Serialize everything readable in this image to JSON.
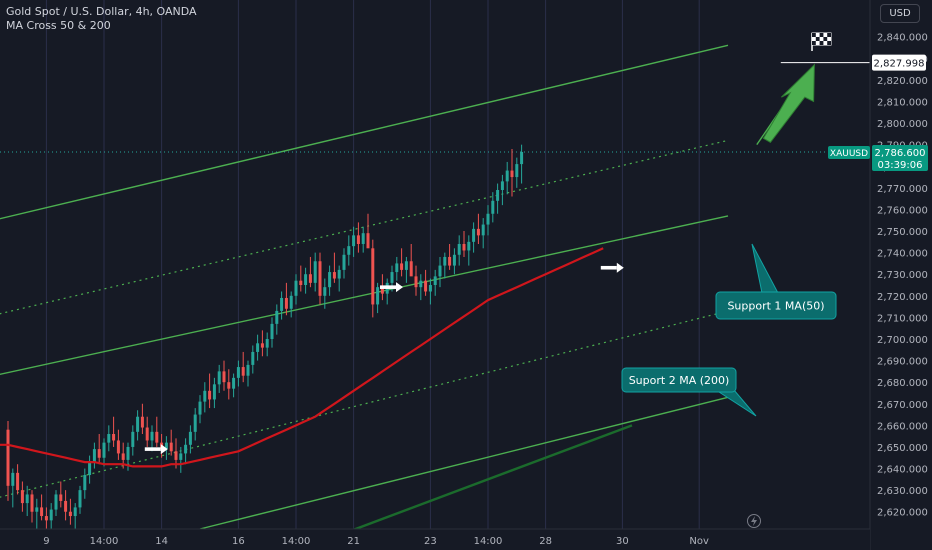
{
  "header": {
    "title": "Gold Spot / U.S. Dollar, 4h, OANDA",
    "indicator": "MA Cross 50 & 200"
  },
  "currency_button": "USD",
  "price_tags": {
    "target": "2,827.998",
    "symbol": "XAUUSD",
    "last": "2,786.600",
    "countdown": "03:39:06"
  },
  "annotations": {
    "support1": "Support 1 MA(50)",
    "support2": "Suport 2 MA (200)"
  },
  "colors": {
    "background": "#161a25",
    "up": "#26a69a",
    "down": "#ef5350",
    "channel": "#4caf50",
    "ma50": "#d0161c",
    "ma200": "#1b6b2c",
    "label_bg": "#0b6d6d"
  },
  "chart_data": {
    "type": "candlestick",
    "y_axis": {
      "min": 2612,
      "max": 2857,
      "ticks": [
        2620,
        2630,
        2640,
        2650,
        2660,
        2670,
        2680,
        2690,
        2700,
        2710,
        2720,
        2730,
        2740,
        2750,
        2760,
        2770,
        2780,
        2790,
        2800,
        2810,
        2820,
        2830,
        2840
      ],
      "tick_labels": [
        "2,620.000",
        "2,630.000",
        "2,640.000",
        "2,650.000",
        "2,660.000",
        "2,670.000",
        "2,680.000",
        "2,690.000",
        "2,700.000",
        "2,710.000",
        "2,720.000",
        "2,730.000",
        "2,740.000",
        "2,750.000",
        "2,760.000",
        "2,770.000",
        "2,780.000",
        "2,790.000",
        "2,800.000",
        "2,810.000",
        "2,820.000",
        "2,830.000",
        "2,840.000"
      ]
    },
    "x_axis": {
      "labels": [
        {
          "text": "9",
          "bar": 8
        },
        {
          "text": "14:00",
          "bar": 20
        },
        {
          "text": "14",
          "bar": 32
        },
        {
          "text": "16",
          "bar": 48
        },
        {
          "text": "14:00",
          "bar": 60
        },
        {
          "text": "21",
          "bar": 72
        },
        {
          "text": "23",
          "bar": 88
        },
        {
          "text": "14:00",
          "bar": 100
        },
        {
          "text": "28",
          "bar": 112
        },
        {
          "text": "30",
          "bar": 128
        },
        {
          "text": "Nov",
          "bar": 144
        }
      ]
    },
    "candles": [
      [
        2658,
        2662,
        2625,
        2632
      ],
      [
        2632,
        2640,
        2622,
        2638
      ],
      [
        2638,
        2642,
        2628,
        2630
      ],
      [
        2630,
        2634,
        2620,
        2624
      ],
      [
        2624,
        2632,
        2618,
        2628
      ],
      [
        2628,
        2630,
        2615,
        2620
      ],
      [
        2620,
        2626,
        2612,
        2622
      ],
      [
        2622,
        2628,
        2616,
        2618
      ],
      [
        2618,
        2622,
        2612,
        2616
      ],
      [
        2616,
        2624,
        2612,
        2621
      ],
      [
        2621,
        2630,
        2618,
        2628
      ],
      [
        2628,
        2634,
        2622,
        2625
      ],
      [
        2625,
        2630,
        2616,
        2620
      ],
      [
        2620,
        2626,
        2614,
        2618
      ],
      [
        2618,
        2624,
        2612,
        2622
      ],
      [
        2622,
        2632,
        2619,
        2630
      ],
      [
        2630,
        2640,
        2626,
        2637
      ],
      [
        2637,
        2646,
        2633,
        2643
      ],
      [
        2643,
        2652,
        2640,
        2649
      ],
      [
        2649,
        2656,
        2642,
        2645
      ],
      [
        2645,
        2654,
        2641,
        2652
      ],
      [
        2652,
        2660,
        2648,
        2656
      ],
      [
        2656,
        2664,
        2650,
        2653
      ],
      [
        2653,
        2658,
        2644,
        2647
      ],
      [
        2647,
        2652,
        2640,
        2644
      ],
      [
        2644,
        2652,
        2639,
        2650
      ],
      [
        2650,
        2660,
        2646,
        2657
      ],
      [
        2657,
        2667,
        2653,
        2664
      ],
      [
        2664,
        2670,
        2656,
        2659
      ],
      [
        2659,
        2664,
        2650,
        2653
      ],
      [
        2653,
        2660,
        2648,
        2657
      ],
      [
        2657,
        2664,
        2650,
        2652
      ],
      [
        2652,
        2656,
        2645,
        2649
      ],
      [
        2649,
        2655,
        2644,
        2652
      ],
      [
        2652,
        2658,
        2646,
        2648
      ],
      [
        2648,
        2654,
        2640,
        2644
      ],
      [
        2644,
        2650,
        2638,
        2647
      ],
      [
        2647,
        2654,
        2642,
        2651
      ],
      [
        2651,
        2660,
        2647,
        2657
      ],
      [
        2657,
        2668,
        2653,
        2665
      ],
      [
        2665,
        2674,
        2661,
        2671
      ],
      [
        2671,
        2680,
        2666,
        2676
      ],
      [
        2676,
        2684,
        2668,
        2672
      ],
      [
        2672,
        2682,
        2668,
        2679
      ],
      [
        2679,
        2688,
        2675,
        2685
      ],
      [
        2685,
        2690,
        2676,
        2680
      ],
      [
        2680,
        2686,
        2672,
        2677
      ],
      [
        2677,
        2684,
        2673,
        2682
      ],
      [
        2682,
        2690,
        2678,
        2687
      ],
      [
        2687,
        2694,
        2680,
        2683
      ],
      [
        2683,
        2690,
        2678,
        2688
      ],
      [
        2688,
        2697,
        2684,
        2694
      ],
      [
        2694,
        2702,
        2690,
        2698
      ],
      [
        2698,
        2704,
        2692,
        2696
      ],
      [
        2696,
        2703,
        2692,
        2700
      ],
      [
        2700,
        2710,
        2696,
        2707
      ],
      [
        2707,
        2716,
        2702,
        2713
      ],
      [
        2713,
        2722,
        2709,
        2719
      ],
      [
        2719,
        2726,
        2711,
        2714
      ],
      [
        2714,
        2722,
        2710,
        2720
      ],
      [
        2720,
        2730,
        2716,
        2727
      ],
      [
        2727,
        2734,
        2722,
        2725
      ],
      [
        2725,
        2733,
        2721,
        2730
      ],
      [
        2730,
        2738,
        2724,
        2726
      ],
      [
        2726,
        2740,
        2722,
        2736
      ],
      [
        2736,
        2740,
        2716,
        2720
      ],
      [
        2720,
        2728,
        2714,
        2724
      ],
      [
        2724,
        2734,
        2720,
        2731
      ],
      [
        2731,
        2740,
        2726,
        2728
      ],
      [
        2728,
        2734,
        2722,
        2732
      ],
      [
        2732,
        2742,
        2728,
        2739
      ],
      [
        2739,
        2748,
        2734,
        2743
      ],
      [
        2743,
        2752,
        2738,
        2748
      ],
      [
        2748,
        2754,
        2740,
        2744
      ],
      [
        2744,
        2752,
        2740,
        2749
      ],
      [
        2749,
        2758,
        2744,
        2742
      ],
      [
        2742,
        2746,
        2710,
        2716
      ],
      [
        2716,
        2726,
        2712,
        2724
      ],
      [
        2724,
        2730,
        2718,
        2721
      ],
      [
        2721,
        2728,
        2716,
        2726
      ],
      [
        2726,
        2734,
        2722,
        2731
      ],
      [
        2731,
        2738,
        2727,
        2735
      ],
      [
        2735,
        2742,
        2729,
        2732
      ],
      [
        2732,
        2738,
        2726,
        2736
      ],
      [
        2736,
        2744,
        2730,
        2729
      ],
      [
        2729,
        2734,
        2720,
        2724
      ],
      [
        2724,
        2730,
        2718,
        2727
      ],
      [
        2727,
        2732,
        2720,
        2722
      ],
      [
        2722,
        2728,
        2716,
        2725
      ],
      [
        2725,
        2732,
        2720,
        2729
      ],
      [
        2729,
        2738,
        2724,
        2734
      ],
      [
        2734,
        2740,
        2728,
        2738
      ],
      [
        2738,
        2744,
        2732,
        2734
      ],
      [
        2734,
        2742,
        2730,
        2739
      ],
      [
        2739,
        2748,
        2734,
        2744
      ],
      [
        2744,
        2750,
        2738,
        2741
      ],
      [
        2741,
        2748,
        2734,
        2745
      ],
      [
        2745,
        2754,
        2740,
        2751
      ],
      [
        2751,
        2758,
        2744,
        2748
      ],
      [
        2748,
        2756,
        2742,
        2753
      ],
      [
        2753,
        2762,
        2748,
        2758
      ],
      [
        2758,
        2768,
        2754,
        2764
      ],
      [
        2764,
        2772,
        2758,
        2769
      ],
      [
        2769,
        2776,
        2762,
        2773
      ],
      [
        2773,
        2782,
        2767,
        2778
      ],
      [
        2778,
        2788,
        2766,
        2775
      ],
      [
        2775,
        2784,
        2770,
        2781
      ],
      [
        2781,
        2790,
        2772,
        2786.6
      ]
    ],
    "ma50": [
      2651,
      2650,
      2649,
      2648,
      2647,
      2646,
      2645,
      2644,
      2643,
      2643,
      2642,
      2642,
      2642,
      2641,
      2641,
      2641,
      2641,
      2642,
      2642,
      2643,
      2644,
      2645,
      2646,
      2647,
      2648,
      2650,
      2652,
      2654,
      2656,
      2658,
      2660,
      2662,
      2664,
      2667,
      2670,
      2673,
      2676,
      2679,
      2682,
      2685,
      2688,
      2691,
      2694,
      2697,
      2700,
      2703,
      2706,
      2709,
      2712,
      2715,
      2718,
      2720,
      2722,
      2724,
      2726,
      2728,
      2730,
      2732,
      2734,
      2736,
      2738,
      2740,
      2742
    ],
    "ma50_start_bar": 0,
    "ma50_x_step_bars": 2,
    "channel": {
      "upper_solid": [
        [
          -3,
          2755
        ],
        [
          150,
          2836
        ]
      ],
      "upper_dotted": [
        [
          -3,
          2711
        ],
        [
          150,
          2792
        ]
      ],
      "middle_solid": [
        [
          -3,
          2683
        ],
        [
          150,
          2757
        ]
      ],
      "lower_dotted": [
        [
          -3,
          2626
        ],
        [
          150,
          2713
        ]
      ],
      "lower_solid": [
        [
          40,
          2612
        ],
        [
          150,
          2673
        ]
      ],
      "ma200": [
        [
          70,
          2610
        ],
        [
          130,
          2660
        ]
      ]
    }
  }
}
